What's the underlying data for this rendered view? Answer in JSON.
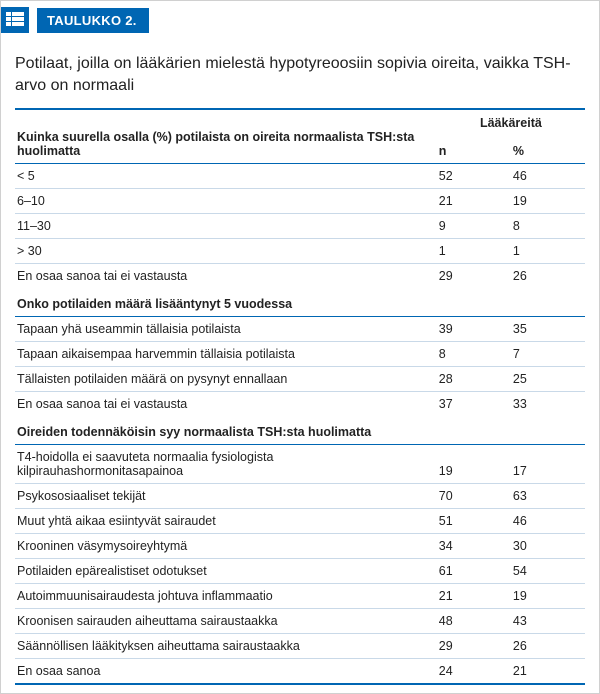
{
  "colors": {
    "primary": "#0066b3",
    "row_divider": "#c9d9e8",
    "border": "#d0d0d0",
    "text": "#222222",
    "white": "#ffffff"
  },
  "label": "TAULUKKO 2.",
  "title": "Potilaat, joilla on lääkärien mielestä hypotyreoosiin sopivia oireita, vaikka TSH-arvo on normaali",
  "superheader": "Lääkäreitä",
  "col_n": "n",
  "col_pct": "%",
  "sections": [
    {
      "header": "Kuinka suurella osalla (%) potilaista on oireita normaalista TSH:sta huolimatta",
      "rows": [
        {
          "label": "< 5",
          "n": "52",
          "pct": "46"
        },
        {
          "label": "6–10",
          "n": "21",
          "pct": "19"
        },
        {
          "label": "11–30",
          "n": "9",
          "pct": "8"
        },
        {
          "label": "> 30",
          "n": "1",
          "pct": "1"
        },
        {
          "label": "En osaa sanoa tai ei vastausta",
          "n": "29",
          "pct": "26"
        }
      ]
    },
    {
      "header": "Onko potilaiden määrä lisääntynyt 5 vuodessa",
      "rows": [
        {
          "label": "Tapaan yhä useammin tällaisia potilaista",
          "n": "39",
          "pct": "35"
        },
        {
          "label": "Tapaan aikaisempaa harvemmin tällaisia potilaista",
          "n": "8",
          "pct": "7"
        },
        {
          "label": "Tällaisten potilaiden määrä on pysynyt ennallaan",
          "n": "28",
          "pct": "25"
        },
        {
          "label": "En osaa sanoa tai ei vastausta",
          "n": "37",
          "pct": "33"
        }
      ]
    },
    {
      "header": "Oireiden todennäköisin syy normaalista TSH:sta huolimatta",
      "rows": [
        {
          "label": "T4-hoidolla ei saavuteta normaalia fysiologista kilpirauhashormonitasapainoa",
          "n": "19",
          "pct": "17"
        },
        {
          "label": "Psykososiaaliset tekijät",
          "n": "70",
          "pct": "63"
        },
        {
          "label": "Muut yhtä aikaa esiintyvät sairaudet",
          "n": "51",
          "pct": "46"
        },
        {
          "label": "Krooninen väsymysoireyhtymä",
          "n": "34",
          "pct": "30"
        },
        {
          "label": "Potilaiden epärealistiset odotukset",
          "n": "61",
          "pct": "54"
        },
        {
          "label": "Autoimmuunisairaudesta johtuva inflammaatio",
          "n": "21",
          "pct": "19"
        },
        {
          "label": "Kroonisen sairauden aiheuttama sairaustaakka",
          "n": "48",
          "pct": "43"
        },
        {
          "label": "Säännöllisen lääkityksen aiheuttama sairaustaakka",
          "n": "29",
          "pct": "26"
        },
        {
          "label": "En osaa sanoa",
          "n": "24",
          "pct": "21"
        }
      ]
    }
  ]
}
